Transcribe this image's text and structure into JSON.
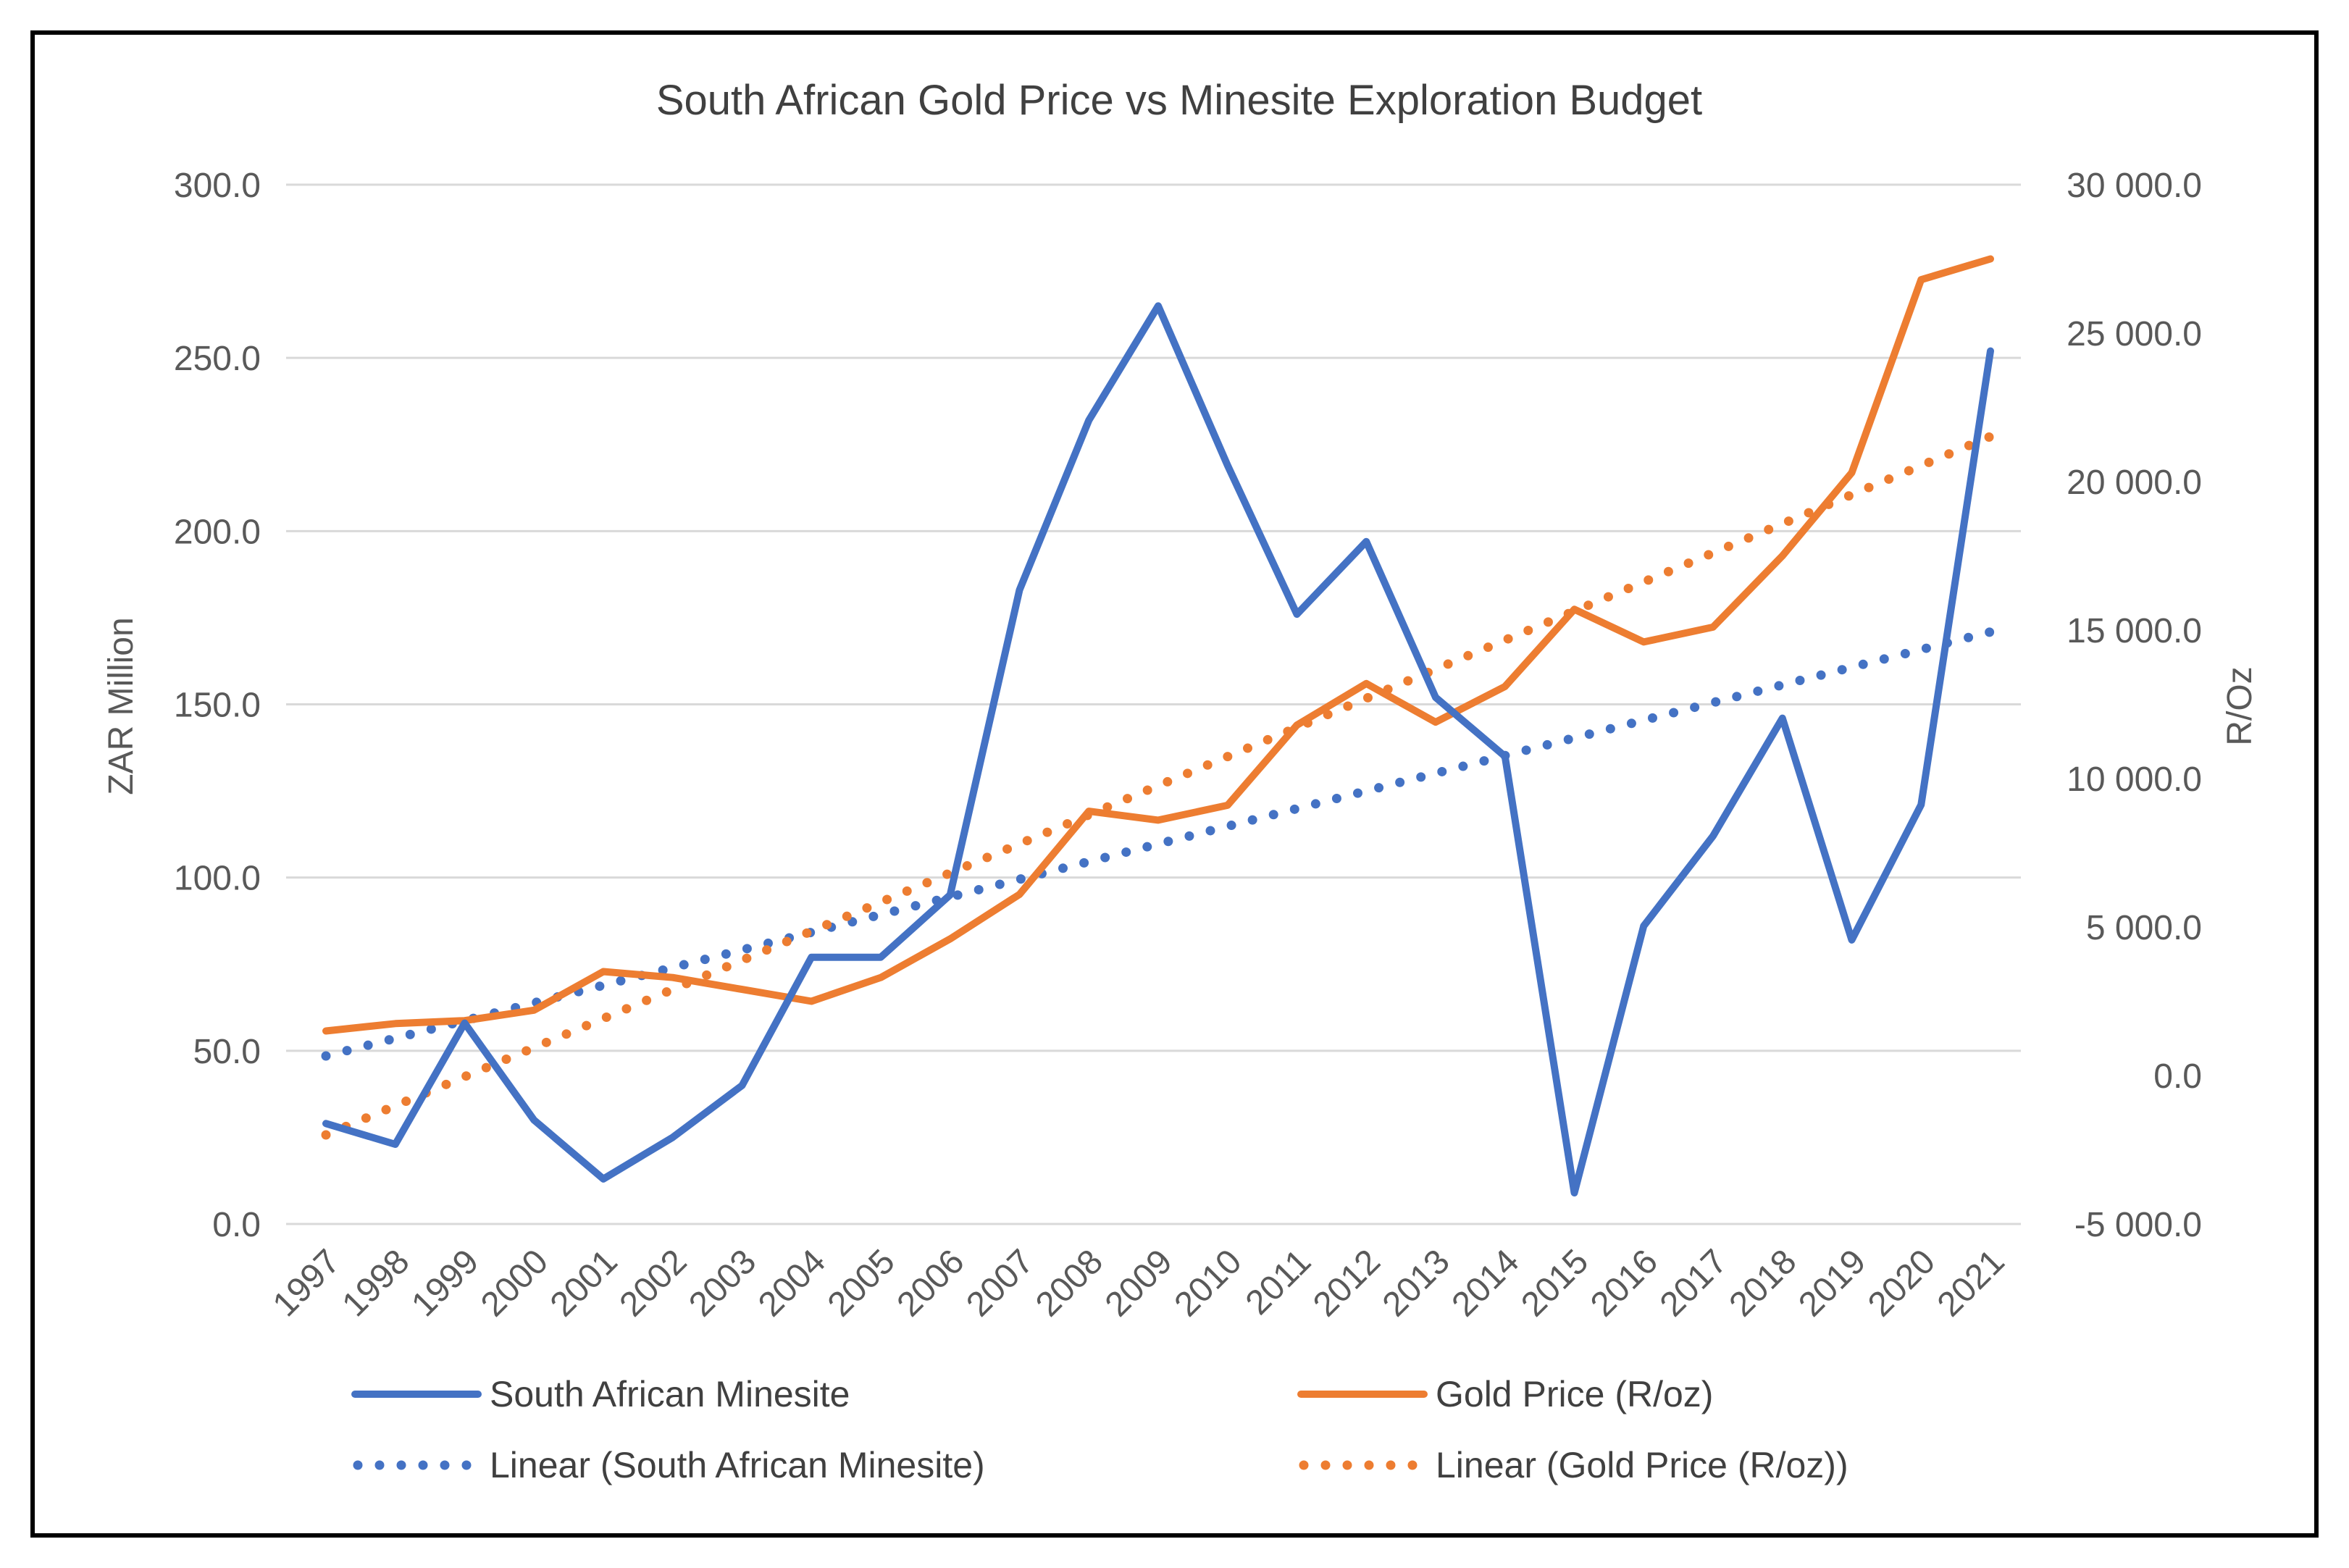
{
  "colors": {
    "minesite": "#4472C4",
    "gold": "#ED7D31",
    "grid": "#D9D9D9",
    "frame": "#000000"
  },
  "chart_data": {
    "type": "line",
    "title": "South African Gold Price vs Minesite Exploration Budget",
    "categories": [
      "1997",
      "1998",
      "1999",
      "2000",
      "2001",
      "2002",
      "2003",
      "2004",
      "2005",
      "2006",
      "2007",
      "2008",
      "2009",
      "2010",
      "2011",
      "2012",
      "2013",
      "2014",
      "2015",
      "2016",
      "2017",
      "2018",
      "2019",
      "2020",
      "2021"
    ],
    "y_left": {
      "label": "ZAR Million",
      "range": [
        0,
        300
      ],
      "ticks": [
        0,
        50,
        100,
        150,
        200,
        250,
        300
      ],
      "tick_labels": [
        "0.0",
        "50.0",
        "100.0",
        "150.0",
        "200.0",
        "250.0",
        "300.0"
      ]
    },
    "y_right": {
      "label": "R/Oz",
      "range": [
        -5000,
        30000
      ],
      "ticks": [
        -5000,
        0,
        5000,
        10000,
        15000,
        20000,
        25000,
        30000
      ],
      "tick_labels": [
        "-5 000.0",
        "0.0",
        "5 000.0",
        "10 000.0",
        "15 000.0",
        "20 000.0",
        "25 000.0",
        "30 000.0"
      ]
    },
    "grid": true,
    "legend_position": "bottom",
    "series": [
      {
        "name": "South African Minesite",
        "axis": "left",
        "style": "solid",
        "values": [
          29,
          23,
          58,
          30,
          13,
          25,
          40,
          77,
          77,
          95,
          183,
          232,
          265,
          219,
          176,
          197,
          152,
          135,
          9,
          86,
          112,
          146,
          82,
          121,
          252
        ]
      },
      {
        "name": "Gold Price (R/oz)",
        "axis": "right",
        "style": "solid",
        "values": [
          1500,
          1750,
          1850,
          2200,
          3500,
          3300,
          2900,
          2500,
          3300,
          4600,
          6100,
          8900,
          8600,
          9100,
          11800,
          13200,
          11900,
          13100,
          15700,
          14600,
          15100,
          17500,
          20300,
          26800,
          27500
        ]
      },
      {
        "name": "Linear (South African Minesite)",
        "axis": "left",
        "style": "dotted",
        "trend_of": "South African Minesite",
        "values": [
          48.5,
          53.6,
          58.7,
          63.8,
          68.9,
          74.0,
          79.1,
          84.2,
          89.3,
          94.4,
          99.5,
          104.6,
          109.7,
          114.8,
          119.9,
          125.0,
          130.1,
          135.2,
          140.3,
          145.4,
          150.5,
          155.6,
          160.7,
          165.8,
          170.9
        ]
      },
      {
        "name": "Linear (Gold Price (R/oz))",
        "axis": "right",
        "style": "dotted",
        "trend_of": "Gold Price (R/oz)",
        "values": [
          -2000,
          -1020,
          -40,
          940,
          1920,
          2900,
          3880,
          4860,
          5840,
          6820,
          7800,
          8780,
          9760,
          10740,
          11720,
          12700,
          13680,
          14660,
          15640,
          16620,
          17600,
          18580,
          19560,
          20540,
          21520
        ]
      }
    ]
  }
}
